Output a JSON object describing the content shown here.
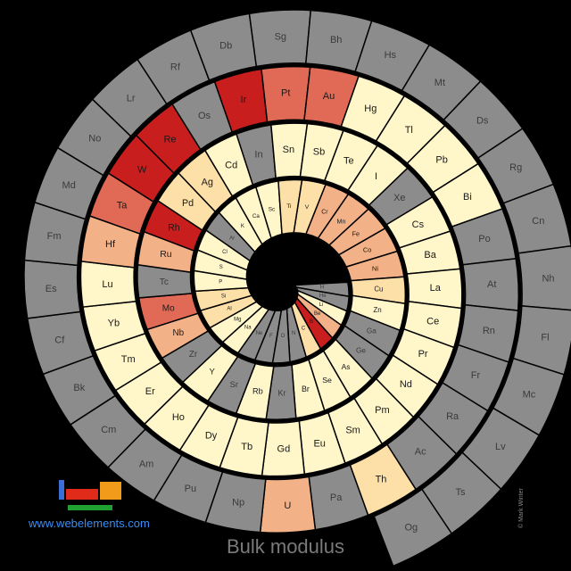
{
  "chart_data": {
    "type": "heatmap",
    "title": "Bulk modulus",
    "colors": {
      "background": "#000000",
      "no_data": "#8c8c8c",
      "lowest": "#fff6c9",
      "low": "#fde0a8",
      "mid": "#f2b187",
      "high": "#e06a55",
      "highest": "#c81e1e",
      "guide_line": "#333333"
    },
    "elements": [
      {
        "symbol": "H",
        "level": 0
      },
      {
        "symbol": "He",
        "level": 0
      },
      {
        "symbol": "Li",
        "level": 1
      },
      {
        "symbol": "Be",
        "level": 3
      },
      {
        "symbol": "B",
        "level": 5
      },
      {
        "symbol": "C",
        "level": 2
      },
      {
        "symbol": "N",
        "level": 0
      },
      {
        "symbol": "O",
        "level": 0
      },
      {
        "symbol": "F",
        "level": 0
      },
      {
        "symbol": "Ne",
        "level": 0
      },
      {
        "symbol": "Na",
        "level": 1
      },
      {
        "symbol": "Mg",
        "level": 1
      },
      {
        "symbol": "Al",
        "level": 2
      },
      {
        "symbol": "Si",
        "level": 2
      },
      {
        "symbol": "P",
        "level": 1
      },
      {
        "symbol": "S",
        "level": 1
      },
      {
        "symbol": "Cl",
        "level": 1
      },
      {
        "symbol": "Ar",
        "level": 0
      },
      {
        "symbol": "K",
        "level": 1
      },
      {
        "symbol": "Ca",
        "level": 1
      },
      {
        "symbol": "Sc",
        "level": 1
      },
      {
        "symbol": "Ti",
        "level": 2
      },
      {
        "symbol": "V",
        "level": 2
      },
      {
        "symbol": "Cr",
        "level": 3
      },
      {
        "symbol": "Mn",
        "level": 3
      },
      {
        "symbol": "Fe",
        "level": 3
      },
      {
        "symbol": "Co",
        "level": 3
      },
      {
        "symbol": "Ni",
        "level": 3
      },
      {
        "symbol": "Cu",
        "level": 2
      },
      {
        "symbol": "Zn",
        "level": 1
      },
      {
        "symbol": "Ga",
        "level": 0
      },
      {
        "symbol": "Ge",
        "level": 0
      },
      {
        "symbol": "As",
        "level": 1
      },
      {
        "symbol": "Se",
        "level": 1
      },
      {
        "symbol": "Br",
        "level": 1
      },
      {
        "symbol": "Kr",
        "level": 0
      },
      {
        "symbol": "Rb",
        "level": 1
      },
      {
        "symbol": "Sr",
        "level": 0
      },
      {
        "symbol": "Y",
        "level": 1
      },
      {
        "symbol": "Zr",
        "level": 0
      },
      {
        "symbol": "Nb",
        "level": 3
      },
      {
        "symbol": "Mo",
        "level": 4
      },
      {
        "symbol": "Tc",
        "level": 0
      },
      {
        "symbol": "Ru",
        "level": 3
      },
      {
        "symbol": "Rh",
        "level": 5
      },
      {
        "symbol": "Pd",
        "level": 2
      },
      {
        "symbol": "Ag",
        "level": 2
      },
      {
        "symbol": "Cd",
        "level": 1
      },
      {
        "symbol": "In",
        "level": 0
      },
      {
        "symbol": "Sn",
        "level": 1
      },
      {
        "symbol": "Sb",
        "level": 1
      },
      {
        "symbol": "Te",
        "level": 1
      },
      {
        "symbol": "I",
        "level": 1
      },
      {
        "symbol": "Xe",
        "level": 0
      },
      {
        "symbol": "Cs",
        "level": 1
      },
      {
        "symbol": "Ba",
        "level": 1
      },
      {
        "symbol": "La",
        "level": 1
      },
      {
        "symbol": "Ce",
        "level": 1
      },
      {
        "symbol": "Pr",
        "level": 1
      },
      {
        "symbol": "Nd",
        "level": 1
      },
      {
        "symbol": "Pm",
        "level": 1
      },
      {
        "symbol": "Sm",
        "level": 1
      },
      {
        "symbol": "Eu",
        "level": 1
      },
      {
        "symbol": "Gd",
        "level": 1
      },
      {
        "symbol": "Tb",
        "level": 1
      },
      {
        "symbol": "Dy",
        "level": 1
      },
      {
        "symbol": "Ho",
        "level": 1
      },
      {
        "symbol": "Er",
        "level": 1
      },
      {
        "symbol": "Tm",
        "level": 1
      },
      {
        "symbol": "Yb",
        "level": 1
      },
      {
        "symbol": "Lu",
        "level": 1
      },
      {
        "symbol": "Hf",
        "level": 3
      },
      {
        "symbol": "Ta",
        "level": 4
      },
      {
        "symbol": "W",
        "level": 5
      },
      {
        "symbol": "Re",
        "level": 5
      },
      {
        "symbol": "Os",
        "level": 0
      },
      {
        "symbol": "Ir",
        "level": 5
      },
      {
        "symbol": "Pt",
        "level": 4
      },
      {
        "symbol": "Au",
        "level": 4
      },
      {
        "symbol": "Hg",
        "level": 1
      },
      {
        "symbol": "Tl",
        "level": 1
      },
      {
        "symbol": "Pb",
        "level": 1
      },
      {
        "symbol": "Bi",
        "level": 1
      },
      {
        "symbol": "Po",
        "level": 0
      },
      {
        "symbol": "At",
        "level": 0
      },
      {
        "symbol": "Rn",
        "level": 0
      },
      {
        "symbol": "Fr",
        "level": 0
      },
      {
        "symbol": "Ra",
        "level": 0
      },
      {
        "symbol": "Ac",
        "level": 0
      },
      {
        "symbol": "Th",
        "level": 2
      },
      {
        "symbol": "Pa",
        "level": 0
      },
      {
        "symbol": "U",
        "level": 3
      },
      {
        "symbol": "Np",
        "level": 0
      },
      {
        "symbol": "Pu",
        "level": 0
      },
      {
        "symbol": "Am",
        "level": 0
      },
      {
        "symbol": "Cm",
        "level": 0
      },
      {
        "symbol": "Bk",
        "level": 0
      },
      {
        "symbol": "Cf",
        "level": 0
      },
      {
        "symbol": "Es",
        "level": 0
      },
      {
        "symbol": "Fm",
        "level": 0
      },
      {
        "symbol": "Md",
        "level": 0
      },
      {
        "symbol": "No",
        "level": 0
      },
      {
        "symbol": "Lr",
        "level": 0
      },
      {
        "symbol": "Rf",
        "level": 0
      },
      {
        "symbol": "Db",
        "level": 0
      },
      {
        "symbol": "Sg",
        "level": 0
      },
      {
        "symbol": "Bh",
        "level": 0
      },
      {
        "symbol": "Hs",
        "level": 0
      },
      {
        "symbol": "Mt",
        "level": 0
      },
      {
        "symbol": "Ds",
        "level": 0
      },
      {
        "symbol": "Rg",
        "level": 0
      },
      {
        "symbol": "Cn",
        "level": 0
      },
      {
        "symbol": "Nh",
        "level": 0
      },
      {
        "symbol": "Fl",
        "level": 0
      },
      {
        "symbol": "Mc",
        "level": 0
      },
      {
        "symbol": "Lv",
        "level": 0
      },
      {
        "symbol": "Ts",
        "level": 0
      },
      {
        "symbol": "Og",
        "level": 0
      }
    ]
  },
  "footer": {
    "title": "Bulk modulus",
    "website": "www.webelements.com",
    "credit": "© Mark Winter"
  },
  "logo": {
    "colors": [
      "#3a6fd8",
      "#e02a1a",
      "#f29a1a",
      "#20a030"
    ]
  }
}
